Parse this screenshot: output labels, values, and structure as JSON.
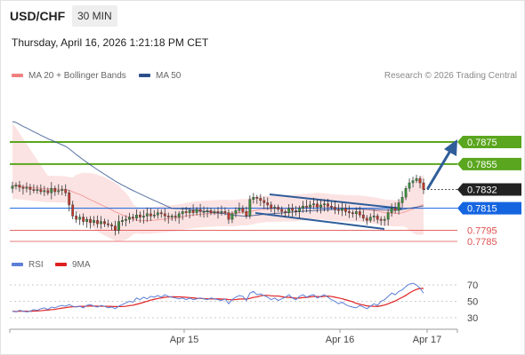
{
  "header": {
    "pair": "USD/CHF",
    "interval": "30 MIN",
    "datetime": "Thursday, April 16, 2026 1:21:18 PM CET"
  },
  "legend": {
    "bollinger": "MA 20 + Bollinger Bands",
    "ma50": "MA 50",
    "credit": "Research © 2026 Trading Central",
    "rsi": "RSI",
    "rsi_ma": "9MA"
  },
  "colors": {
    "up_candle": "#3a8f3a",
    "down_candle": "#c0392b",
    "bollinger": "#f08080",
    "ma50": "#2c4f8a",
    "resistance": "#5aa61e",
    "current": "#222222",
    "pivot": "#1565e0",
    "support": "#e05050",
    "arrow": "#2e5d9a",
    "rsi": "#5b7fd6",
    "rsi_ma": "#e02020"
  },
  "chart_data": [
    {
      "type": "candlestick",
      "x_ticks": [
        "Apr 15",
        "Apr 16",
        "Apr 17"
      ],
      "levels": [
        {
          "value": 0.7875,
          "label": "0.7875",
          "kind": "resistance"
        },
        {
          "value": 0.7855,
          "label": "0.7855",
          "kind": "resistance"
        },
        {
          "value": 0.7832,
          "label": "0.7832",
          "kind": "current"
        },
        {
          "value": 0.7815,
          "label": "0.7815",
          "kind": "pivot"
        },
        {
          "value": 0.7795,
          "label": "0.7795",
          "kind": "support"
        },
        {
          "value": 0.7785,
          "label": "0.7785",
          "kind": "support"
        }
      ],
      "ylim": [
        0.7775,
        0.791
      ],
      "close": [
        0.7835,
        0.7836,
        0.7834,
        0.7833,
        0.7834,
        0.7832,
        0.7831,
        0.7832,
        0.783,
        0.7831,
        0.7829,
        0.7833,
        0.783,
        0.7831,
        0.7832,
        0.7829,
        0.7818,
        0.7808,
        0.7805,
        0.7807,
        0.7803,
        0.7805,
        0.7802,
        0.7804,
        0.7801,
        0.7803,
        0.7801,
        0.78,
        0.7799,
        0.7795,
        0.7803,
        0.7804,
        0.7805,
        0.7807,
        0.7806,
        0.7809,
        0.7807,
        0.7808,
        0.781,
        0.7808,
        0.7809,
        0.7811,
        0.781,
        0.7808,
        0.7807,
        0.7808,
        0.7807,
        0.781,
        0.7812,
        0.7811,
        0.7813,
        0.7811,
        0.7814,
        0.7812,
        0.7812,
        0.7813,
        0.7811,
        0.7812,
        0.7811,
        0.7812,
        0.7811,
        0.7805,
        0.781,
        0.7813,
        0.7815,
        0.7812,
        0.7808,
        0.7823,
        0.7825,
        0.7824,
        0.7822,
        0.782,
        0.7818,
        0.7815,
        0.7816,
        0.7814,
        0.7812,
        0.7811,
        0.7815,
        0.7813,
        0.7812,
        0.7815,
        0.7817,
        0.7816,
        0.7818,
        0.7819,
        0.7816,
        0.7818,
        0.7819,
        0.7817,
        0.7816,
        0.7814,
        0.7813,
        0.7815,
        0.7812,
        0.7811,
        0.781,
        0.7812,
        0.7809,
        0.7806,
        0.7804,
        0.7807,
        0.7808,
        0.7805,
        0.7804,
        0.7805,
        0.7811,
        0.7815,
        0.7813,
        0.782,
        0.7825,
        0.7833,
        0.7838,
        0.784,
        0.7842,
        0.7838,
        0.7832
      ]
    },
    {
      "type": "line",
      "name": "RSI",
      "y_ticks": [
        70,
        50,
        30
      ],
      "ylim": [
        15,
        80
      ],
      "rsi": [
        38,
        37,
        39,
        38,
        37,
        38,
        40,
        39,
        41,
        42,
        40,
        43,
        42,
        44,
        45,
        44,
        46,
        44,
        43,
        44,
        42,
        45,
        46,
        44,
        43,
        45,
        44,
        42,
        43,
        41,
        44,
        46,
        48,
        50,
        49,
        54,
        52,
        55,
        53,
        56,
        55,
        57,
        55,
        58,
        56,
        55,
        54,
        53,
        54,
        52,
        54,
        52,
        53,
        54,
        53,
        52,
        54,
        53,
        52,
        51,
        53,
        47,
        52,
        55,
        57,
        56,
        51,
        60,
        62,
        58,
        59,
        57,
        55,
        52,
        54,
        51,
        53,
        55,
        58,
        54,
        52,
        56,
        58,
        55,
        57,
        58,
        54,
        56,
        58,
        55,
        52,
        50,
        47,
        49,
        46,
        44,
        43,
        42,
        45,
        43,
        41,
        44,
        47,
        45,
        50,
        52,
        56,
        60,
        58,
        62,
        64,
        68,
        71,
        72,
        70,
        66,
        60
      ]
    }
  ]
}
